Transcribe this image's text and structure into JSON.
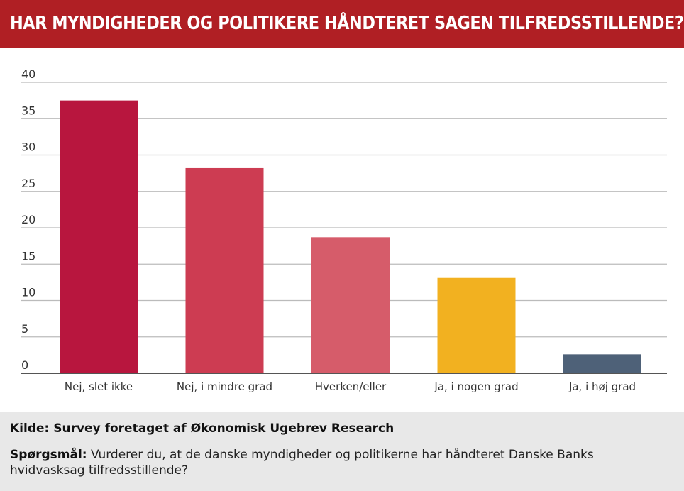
{
  "header": {
    "title": "HAR MYNDIGHEDER OG POLITIKERE HÅNDTERET SAGEN TILFREDSSTILLENDE?"
  },
  "chart_data": {
    "type": "bar",
    "categories": [
      "Nej, slet ikke",
      "Nej, i mindre grad",
      "Hverken/eller",
      "Ja, i nogen grad",
      "Ja, i høj grad"
    ],
    "values": [
      37.5,
      28.2,
      18.7,
      13.1,
      2.6
    ],
    "colors": [
      "#b8163e",
      "#cd3c52",
      "#d65c6a",
      "#f2b120",
      "#4e6178"
    ],
    "ylim": [
      0,
      40
    ],
    "yticks": [
      0,
      5,
      10,
      15,
      20,
      25,
      30,
      35,
      40
    ],
    "grid": true,
    "xlabel": "",
    "ylabel": ""
  },
  "footer": {
    "source": "Kilde: Survey foretaget af Økonomisk Ugebrev Research",
    "question_label": "Spørgsmål:",
    "question_text": " Vurderer du, at de danske myndigheder og politikerne har håndteret Danske Banks hvidvasksag tilfredsstillende?"
  }
}
